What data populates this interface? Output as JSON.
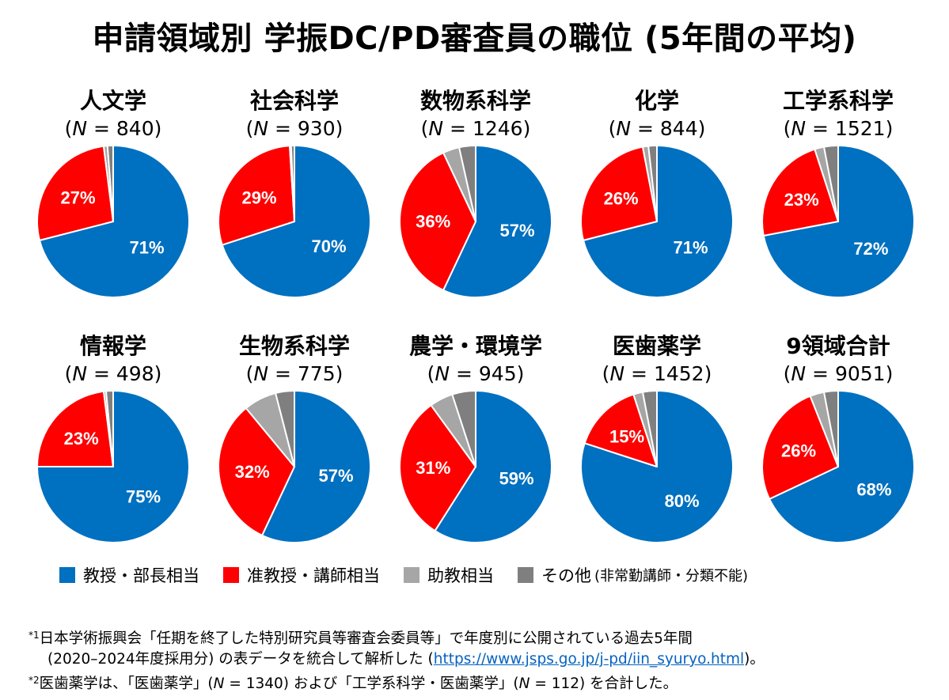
{
  "title": "申請領域別 学振DC/PD審査員の職位 (5年間の平均)",
  "n_symbol": "N",
  "colors": {
    "professor": "#0070c0",
    "associate": "#ff0000",
    "assistant": "#a6a6a6",
    "other": "#7f7f7f"
  },
  "legend": [
    {
      "label": "教授・部長相当",
      "sub": "",
      "color": "#0070c0"
    },
    {
      "label": "准教授・講師相当",
      "sub": "",
      "color": "#ff0000"
    },
    {
      "label": "助教相当",
      "sub": "",
      "color": "#a6a6a6"
    },
    {
      "label": "その他",
      "sub": "(非常勤講師・分類不能)",
      "color": "#7f7f7f"
    }
  ],
  "chart_data": {
    "type": "pie",
    "series_names": [
      "教授・部長相当",
      "准教授・講師相当",
      "助教相当",
      "その他"
    ],
    "charts": [
      {
        "name": "人文学",
        "n": "840",
        "values": [
          71,
          27,
          0.8,
          1.2
        ],
        "labels": [
          "71%",
          "27%",
          "",
          ""
        ]
      },
      {
        "name": "社会科学",
        "n": "930",
        "values": [
          70,
          29,
          0.3,
          0.7
        ],
        "labels": [
          "70%",
          "29%",
          "",
          ""
        ]
      },
      {
        "name": "数物系科学",
        "n": "1246",
        "values": [
          57,
          36,
          3.5,
          3.5
        ],
        "labels": [
          "57%",
          "36%",
          "",
          ""
        ]
      },
      {
        "name": "化学",
        "n": "844",
        "values": [
          71,
          26,
          1.2,
          1.8
        ],
        "labels": [
          "71%",
          "26%",
          "",
          ""
        ]
      },
      {
        "name": "工学系科学",
        "n": "1521",
        "values": [
          72,
          23,
          2,
          3
        ],
        "labels": [
          "72%",
          "23%",
          "",
          ""
        ]
      },
      {
        "name": "情報学",
        "n": "498",
        "values": [
          75,
          23,
          0.5,
          1.5
        ],
        "labels": [
          "75%",
          "23%",
          "",
          ""
        ]
      },
      {
        "name": "生物系科学",
        "n": "775",
        "values": [
          57,
          32,
          7,
          4
        ],
        "labels": [
          "57%",
          "32%",
          "",
          ""
        ]
      },
      {
        "name": "農学・環境学",
        "n": "945",
        "values": [
          59,
          31,
          5,
          5
        ],
        "labels": [
          "59%",
          "31%",
          "",
          ""
        ]
      },
      {
        "name": "医歯薬学",
        "n": "1452",
        "values": [
          80,
          15,
          2,
          3
        ],
        "labels": [
          "80%",
          "15%",
          "",
          ""
        ]
      },
      {
        "name": "9領域合計",
        "n": "9051",
        "values": [
          68,
          26,
          3,
          3
        ],
        "labels": [
          "68%",
          "26%",
          "",
          ""
        ]
      }
    ]
  },
  "notes": {
    "note1_mark": "*1",
    "note1_line1": "日本学術振興会「任期を終了した特別研究員等審査会委員等」で年度別に公開されている過去5年間",
    "note1_line2_pre": "(2020–2024年度採用分) の表データを統合して解析した (",
    "note1_url": "https://www.jsps.go.jp/j-pd/iin_syuryo.html",
    "note1_line2_post": ")。",
    "note2_mark": "*2",
    "note2_pre": "医歯薬学は、「医歯薬学」(",
    "note2_n1": "= 1340) および「工学系科学・医歯薬学」(",
    "note2_n2": "= 112) を合計した。"
  }
}
